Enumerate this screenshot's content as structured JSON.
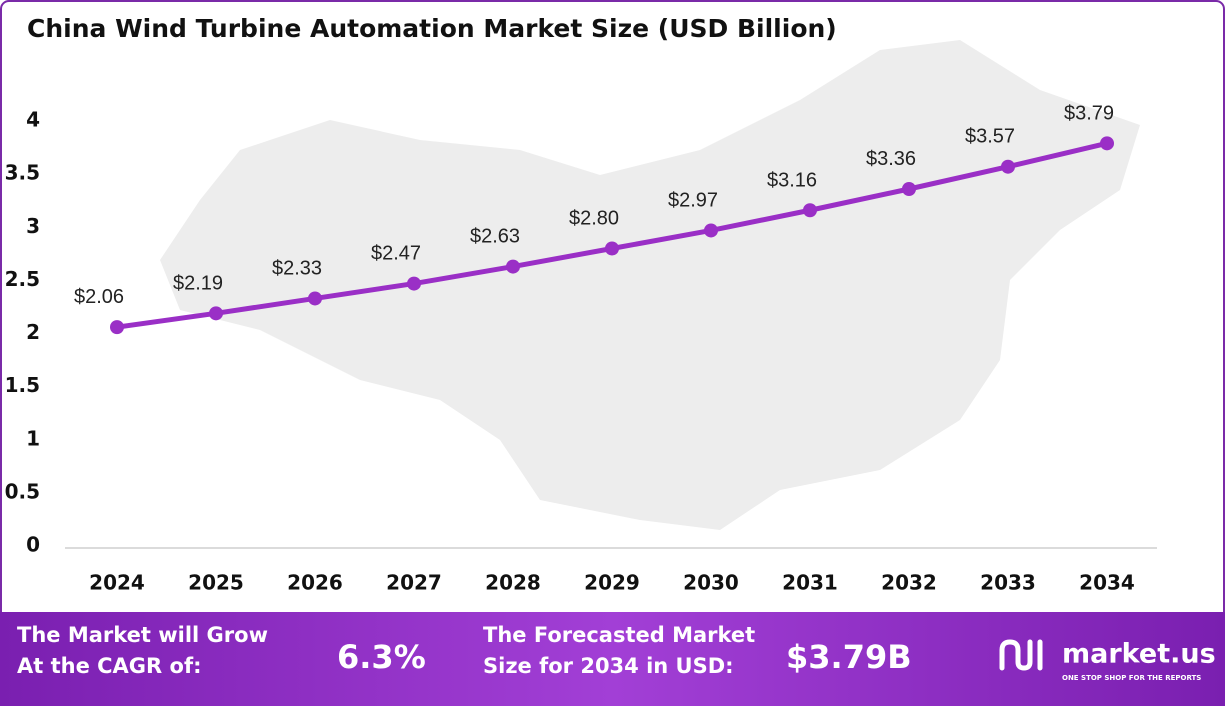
{
  "chart_data": {
    "type": "line",
    "title": "China Wind Turbine Automation Market Size (USD Billion)",
    "categories": [
      "2024",
      "2025",
      "2026",
      "2027",
      "2028",
      "2029",
      "2030",
      "2031",
      "2032",
      "2033",
      "2034"
    ],
    "values": [
      2.06,
      2.19,
      2.33,
      2.47,
      2.63,
      2.8,
      2.97,
      3.16,
      3.36,
      3.57,
      3.79
    ],
    "value_labels": [
      "$2.06",
      "$2.19",
      "$2.33",
      "$2.47",
      "$2.63",
      "$2.80",
      "$2.97",
      "$3.16",
      "$3.36",
      "$3.57",
      "$3.79"
    ],
    "color": "#9a2fc6",
    "ylim": [
      0,
      4.4
    ],
    "yticks": [
      0,
      0.5,
      1,
      1.5,
      2,
      2.5,
      3,
      3.5,
      4
    ],
    "grid": false
  },
  "banner": {
    "cagr_text": [
      "The Market will Grow",
      "At the CAGR of:"
    ],
    "cagr": "6.3%",
    "forecast_text": [
      "The Forecasted Market",
      "Size for 2034 in USD:"
    ],
    "forecast": "$3.79B",
    "brand": "market.us",
    "tagline": "ONE STOP SHOP FOR THE REPORTS"
  }
}
